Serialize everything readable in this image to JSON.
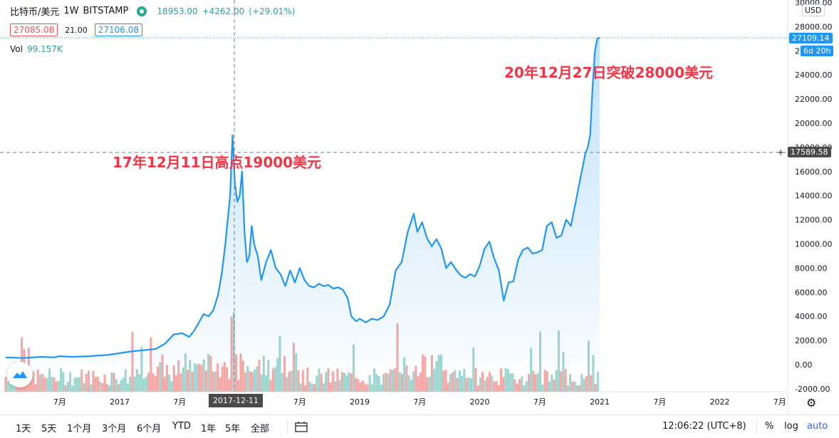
{
  "header": {
    "symbol": "比特币/美元",
    "interval": "1W",
    "exchange": "BITSTAMP",
    "last_price": "18953.00",
    "change": "+4262.00",
    "change_pct": "(+29.01%)",
    "bid": "27085.08",
    "spread": "21.00",
    "ask": "27106.08",
    "volume_label": "Vol",
    "volume_value": "99.157K"
  },
  "currency": "USD",
  "annotations": {
    "first": "17年12月11日高点19000美元",
    "second": "20年12月27日突破28000美元"
  },
  "price_tags": {
    "last": "27109.14",
    "timer": "6d 20h",
    "crosshair": "17589.58"
  },
  "crosshair_date": "2017-12-11",
  "toolbar": {
    "ranges": [
      "1天",
      "5天",
      "1个月",
      "3个月",
      "6个月",
      "YTD",
      "1年",
      "5年",
      "全部"
    ],
    "time": "12:06:22 (UTC+8)",
    "pct": "%",
    "log": "log",
    "auto": "auto"
  },
  "colors": {
    "line": "#2196f3",
    "up": "#26a69a",
    "down": "#ef5350",
    "annotation": "#f23645"
  },
  "chart_data": {
    "type": "line",
    "title": "",
    "y_axis_ticks": [
      "30000.00",
      "28000.00",
      "26000.00",
      "24000.00",
      "22000.00",
      "20000.00",
      "18000.00",
      "16000.00",
      "14000.00",
      "12000.00",
      "10000.00",
      "8000.00",
      "6000.00",
      "4000.00",
      "2000.00",
      "0.00",
      "-2000.00"
    ],
    "ylim": [
      -2000,
      30000
    ],
    "x_axis_ticks": [
      "7月",
      "2017",
      "7月",
      "2017-12-11",
      "7月",
      "2019",
      "7月",
      "2020",
      "7月",
      "2021",
      "7月",
      "2022",
      "7月"
    ],
    "x_tick_dates": [
      2016.5,
      2017.0,
      2017.5,
      2017.95,
      2018.5,
      2019.0,
      2019.5,
      2020.0,
      2020.5,
      2021.0,
      2021.5,
      2022.0,
      2022.5
    ],
    "xlim": [
      2016.05,
      2023.5
    ],
    "series": [
      {
        "kind": "price",
        "x": [
          2016.05,
          2016.2,
          2016.35,
          2016.45,
          2016.5,
          2016.6,
          2016.75,
          2016.9,
          2017.0,
          2017.1,
          2017.2,
          2017.3,
          2017.38,
          2017.45,
          2017.52,
          2017.58,
          2017.62,
          2017.66,
          2017.7,
          2017.74,
          2017.78,
          2017.82,
          2017.85,
          2017.88,
          2017.9,
          2017.92,
          2017.94,
          2017.96,
          2017.98,
          2018.0,
          2018.02,
          2018.04,
          2018.06,
          2018.08,
          2018.1,
          2018.12,
          2018.15,
          2018.18,
          2018.22,
          2018.26,
          2018.3,
          2018.34,
          2018.38,
          2018.42,
          2018.46,
          2018.5,
          2018.54,
          2018.58,
          2018.62,
          2018.66,
          2018.7,
          2018.74,
          2018.78,
          2018.82,
          2018.86,
          2018.9,
          2018.93,
          2018.97,
          2019.0,
          2019.05,
          2019.1,
          2019.15,
          2019.2,
          2019.25,
          2019.3,
          2019.35,
          2019.4,
          2019.45,
          2019.48,
          2019.52,
          2019.56,
          2019.6,
          2019.64,
          2019.68,
          2019.72,
          2019.76,
          2019.8,
          2019.84,
          2019.88,
          2019.92,
          2019.96,
          2020.0,
          2020.04,
          2020.08,
          2020.12,
          2020.16,
          2020.2,
          2020.24,
          2020.28,
          2020.32,
          2020.36,
          2020.4,
          2020.44,
          2020.48,
          2020.52,
          2020.56,
          2020.6,
          2020.64,
          2020.68,
          2020.72,
          2020.76,
          2020.8,
          2020.84,
          2020.88,
          2020.9,
          2020.92,
          2020.94,
          2020.96,
          2020.98,
          2021.0
        ],
        "y": [
          600,
          550,
          650,
          600,
          700,
          650,
          700,
          800,
          950,
          1100,
          1200,
          1300,
          1750,
          2500,
          2600,
          2300,
          2800,
          3500,
          4200,
          4000,
          4500,
          5800,
          7500,
          10000,
          12000,
          14000,
          19000,
          15000,
          13500,
          14000,
          16000,
          11000,
          8500,
          9000,
          11500,
          10000,
          9000,
          7000,
          8500,
          9500,
          8000,
          7500,
          6500,
          7800,
          6800,
          8000,
          7000,
          6500,
          6400,
          6700,
          6500,
          6600,
          6300,
          6400,
          6200,
          5500,
          4000,
          3600,
          3800,
          3500,
          3800,
          3700,
          4000,
          5000,
          7800,
          8500,
          11000,
          12500,
          11000,
          11800,
          10500,
          9800,
          10400,
          9600,
          8000,
          8500,
          7900,
          7400,
          7200,
          7500,
          7300,
          8200,
          9600,
          10200,
          8800,
          7800,
          5300,
          6800,
          6900,
          8700,
          9500,
          9700,
          9200,
          9300,
          9500,
          11500,
          11800,
          10500,
          10700,
          12000,
          11500,
          13500,
          15500,
          17500,
          18000,
          19000,
          23000,
          26000,
          27000,
          27109.14
        ]
      },
      {
        "kind": "volume",
        "values_scaled": "bars along bottom (0–5000 on price axis), green up / red down"
      }
    ]
  }
}
